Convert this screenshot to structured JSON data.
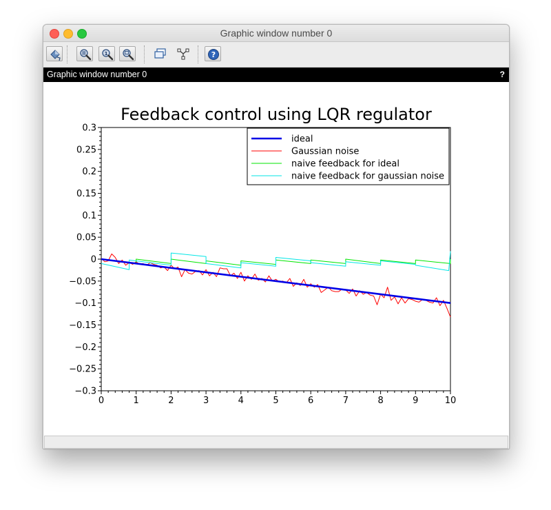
{
  "window": {
    "title": "Graphic window number 0",
    "figure_label": "Graphic window number 0",
    "help_glyph": "?"
  },
  "toolbar": {
    "buttons": [
      {
        "name": "rotate-icon",
        "kind": "boxed"
      },
      {
        "name": "zoom-in-icon",
        "kind": "boxed"
      },
      {
        "name": "zoom-reset-icon",
        "kind": "boxed"
      },
      {
        "name": "zoom-area-icon",
        "kind": "boxed"
      },
      {
        "name": "datatip-icon",
        "kind": "plain"
      },
      {
        "name": "datatip-edit-icon",
        "kind": "plain"
      },
      {
        "name": "help-icon",
        "kind": "boxed"
      }
    ]
  },
  "chart_data": {
    "type": "line",
    "title": "Feedback control using LQR regulator",
    "xlabel": "",
    "ylabel": "",
    "xlim": [
      0,
      10
    ],
    "ylim": [
      -0.3,
      0.3
    ],
    "xticks": [
      "0",
      "1",
      "2",
      "3",
      "4",
      "5",
      "6",
      "7",
      "8",
      "9",
      "10"
    ],
    "yticks": [
      "0.3",
      "0.25",
      "0.2",
      "0.15",
      "0.1",
      "0.05",
      "0",
      "−0.05",
      "−0.1",
      "−0.15",
      "−0.2",
      "−0.25",
      "−0.3"
    ],
    "grid": false,
    "legend_position": "top-right",
    "series": [
      {
        "name": "ideal",
        "color": "#0000e6",
        "width": 2.6,
        "x": [
          0,
          10
        ],
        "y": [
          0.0,
          -0.1
        ]
      },
      {
        "name": "Gaussian noise",
        "color": "#ff0000",
        "width": 1,
        "x": [
          0,
          0.1,
          0.2,
          0.3,
          0.4,
          0.5,
          0.6,
          0.7,
          0.8,
          0.9,
          1.0,
          1.1,
          1.2,
          1.3,
          1.4,
          1.5,
          1.6,
          1.7,
          1.8,
          1.9,
          2.0,
          2.1,
          2.2,
          2.3,
          2.4,
          2.5,
          2.6,
          2.7,
          2.8,
          2.9,
          3.0,
          3.1,
          3.2,
          3.3,
          3.4,
          3.5,
          3.6,
          3.7,
          3.8,
          3.9,
          4.0,
          4.1,
          4.2,
          4.3,
          4.4,
          4.5,
          4.6,
          4.7,
          4.8,
          4.9,
          5.0,
          5.1,
          5.2,
          5.3,
          5.4,
          5.5,
          5.6,
          5.7,
          5.8,
          5.9,
          6.0,
          6.1,
          6.2,
          6.3,
          6.4,
          6.5,
          6.6,
          6.7,
          6.8,
          6.9,
          7.0,
          7.1,
          7.2,
          7.3,
          7.4,
          7.5,
          7.6,
          7.7,
          7.8,
          7.9,
          8.0,
          8.1,
          8.2,
          8.3,
          8.4,
          8.5,
          8.6,
          8.7,
          8.8,
          8.9,
          9.0,
          9.1,
          9.2,
          9.3,
          9.4,
          9.5,
          9.6,
          9.7,
          9.8,
          9.9,
          10.0
        ],
        "y": [
          0.002,
          -0.006,
          -0.004,
          0.012,
          0.004,
          -0.01,
          -0.002,
          -0.014,
          -0.008,
          -0.012,
          -0.006,
          -0.012,
          -0.01,
          -0.014,
          -0.008,
          -0.012,
          -0.014,
          -0.02,
          -0.018,
          -0.026,
          -0.014,
          -0.022,
          -0.018,
          -0.04,
          -0.024,
          -0.032,
          -0.034,
          -0.028,
          -0.026,
          -0.036,
          -0.024,
          -0.038,
          -0.03,
          -0.04,
          -0.02,
          -0.022,
          -0.022,
          -0.038,
          -0.032,
          -0.044,
          -0.03,
          -0.05,
          -0.038,
          -0.046,
          -0.034,
          -0.048,
          -0.044,
          -0.052,
          -0.038,
          -0.05,
          -0.046,
          -0.052,
          -0.05,
          -0.054,
          -0.044,
          -0.062,
          -0.054,
          -0.06,
          -0.046,
          -0.064,
          -0.056,
          -0.064,
          -0.058,
          -0.076,
          -0.07,
          -0.064,
          -0.072,
          -0.074,
          -0.074,
          -0.068,
          -0.07,
          -0.078,
          -0.068,
          -0.084,
          -0.072,
          -0.08,
          -0.076,
          -0.082,
          -0.084,
          -0.104,
          -0.08,
          -0.088,
          -0.064,
          -0.094,
          -0.086,
          -0.102,
          -0.088,
          -0.1,
          -0.09,
          -0.092,
          -0.096,
          -0.098,
          -0.092,
          -0.094,
          -0.098,
          -0.1,
          -0.088,
          -0.106,
          -0.094,
          -0.112,
          -0.132
        ]
      },
      {
        "name": "naive feedback for ideal",
        "color": "#00e600",
        "width": 1,
        "x": [
          0,
          1.0,
          1.0,
          2.0,
          2.0,
          3.0,
          3.0,
          4.0,
          4.0,
          5.0,
          5.0,
          6.0,
          6.0,
          7.0,
          7.0,
          8.0,
          8.0,
          9.0,
          9.0,
          10.0,
          10.0
        ],
        "y": [
          0.0,
          -0.01,
          0.0,
          -0.01,
          0.0,
          -0.01,
          -0.004,
          -0.014,
          -0.004,
          -0.012,
          -0.002,
          -0.01,
          -0.002,
          -0.01,
          0.0,
          -0.01,
          -0.002,
          -0.01,
          -0.002,
          -0.01,
          0.0
        ]
      },
      {
        "name": "naive feedback for gaussian noise",
        "color": "#00e6e6",
        "width": 1,
        "x": [
          0,
          0.8,
          0.8,
          2.0,
          2.0,
          3.0,
          3.0,
          4.0,
          4.0,
          5.0,
          5.0,
          6.0,
          6.0,
          7.0,
          7.0,
          8.0,
          8.0,
          9.0,
          9.0,
          9.95,
          10.0
        ],
        "y": [
          -0.01,
          -0.024,
          -0.002,
          -0.014,
          0.014,
          0.006,
          -0.01,
          -0.02,
          -0.008,
          -0.016,
          0.004,
          -0.004,
          -0.008,
          -0.016,
          -0.006,
          -0.014,
          -0.004,
          -0.012,
          -0.014,
          -0.026,
          0.018
        ]
      }
    ]
  }
}
